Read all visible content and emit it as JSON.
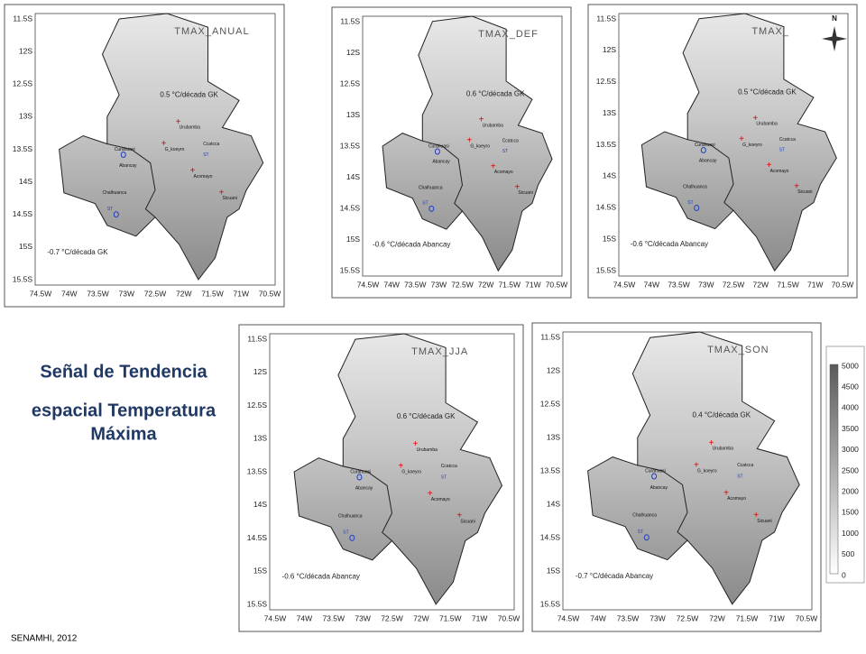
{
  "title": [
    "Señal de Tendencia",
    "espacial Temperatura",
    "Máxima"
  ],
  "source": "SENAMHI, 2012",
  "north_label": "N",
  "axes": {
    "lat": [
      "11.5S",
      "12S",
      "12.5S",
      "13S",
      "13.5S",
      "14S",
      "14.5S",
      "15S",
      "15.5S"
    ],
    "lon": [
      "74.5W",
      "74W",
      "73.5W",
      "73W",
      "72.5W",
      "72W",
      "71.5W",
      "71W",
      "70.5W"
    ]
  },
  "stations": [
    "Urubamba",
    "Curahuasi",
    "G_koeyro",
    "Abancay",
    "Ccatcca",
    "ST",
    "Acomayo",
    "Sicuani",
    "Chalhuanca",
    "ST"
  ],
  "panels": [
    {
      "title": "TMAX_ANUAL",
      "trend_high": "0.5 °C/década GK",
      "trend_low": "-0.7 °C/década GK"
    },
    {
      "title": "TMAX_DEF",
      "trend_high": "0.6 °C/década GK",
      "trend_low": "-0.6 °C/década Abancay"
    },
    {
      "title": "TMAX_",
      "trend_high": "0.5 °C/década GK",
      "trend_low": "-0.6 °C/década Abancay"
    },
    {
      "title": "TMAX_JJA",
      "trend_high": "0.6 °C/década GK",
      "trend_low": "-0.6 °C/década Abancay"
    },
    {
      "title": "TMAX_SON",
      "trend_high": "0.4 °C/década GK",
      "trend_low": "-0.7 °C/década Abancay"
    }
  ],
  "colorbar": {
    "labels": [
      5000,
      4500,
      4000,
      3500,
      3000,
      2500,
      2000,
      1500,
      1000,
      500,
      0
    ]
  }
}
